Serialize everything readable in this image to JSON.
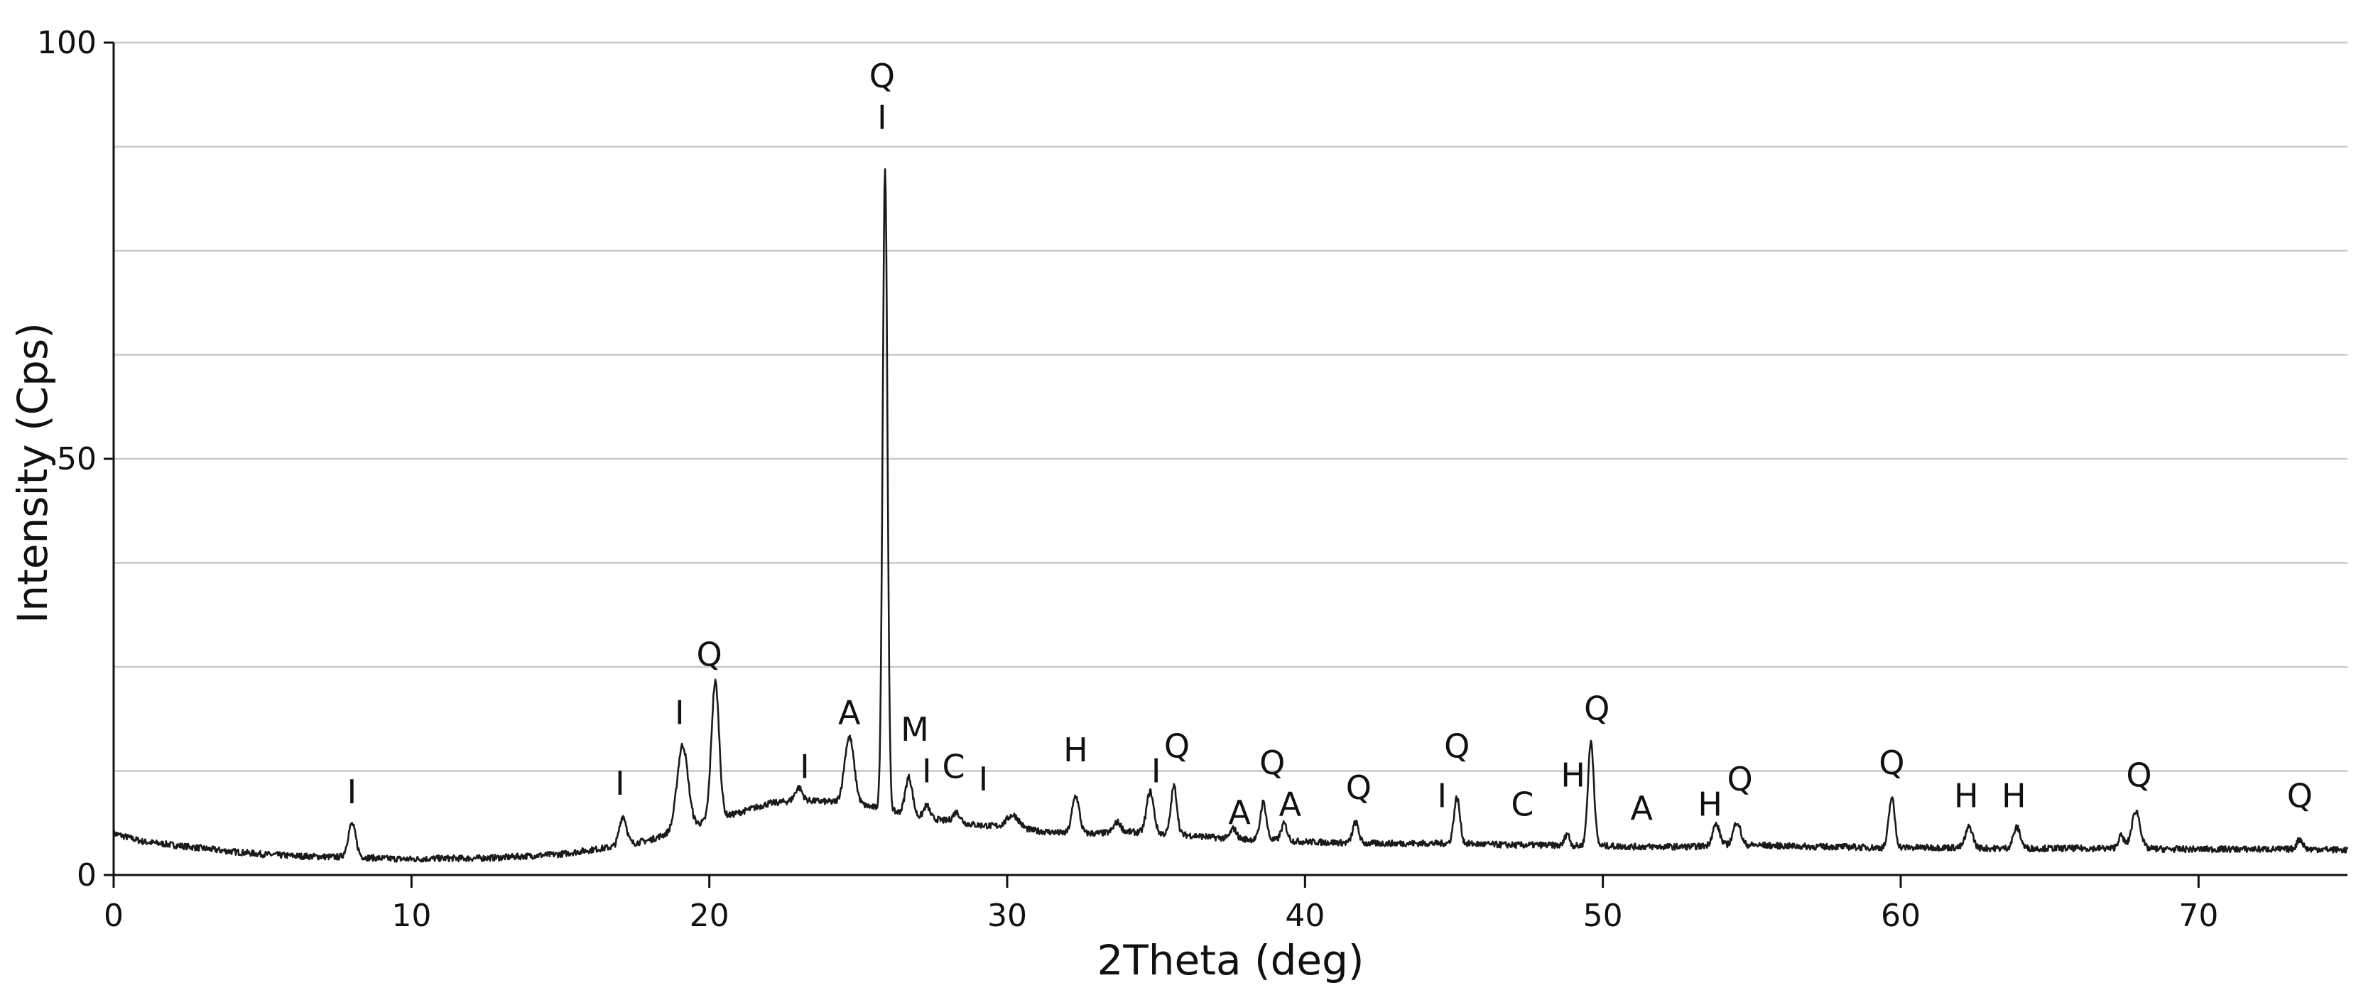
{
  "chart_data": {
    "type": "line",
    "title": "",
    "xlabel": "2Theta (deg)",
    "ylabel": "Intensity (Cps)",
    "xlim": [
      0,
      75
    ],
    "ylim": [
      0,
      100
    ],
    "grid": true,
    "x_ticks": [
      0,
      10,
      20,
      30,
      40,
      50,
      60,
      70
    ],
    "x_tick_labels": [
      "0",
      "10",
      "20",
      "30",
      "40",
      "50",
      "60",
      "70"
    ],
    "y_ticks": [
      0,
      50,
      100
    ],
    "y_tick_labels": [
      "0",
      "50",
      "100"
    ],
    "y_gridlines": [
      0,
      12.5,
      25,
      37.5,
      50,
      62.5,
      75,
      87.5,
      100
    ],
    "baseline": [
      [
        0,
        5.0
      ],
      [
        1,
        4.0
      ],
      [
        2,
        3.6
      ],
      [
        3,
        3.2
      ],
      [
        4,
        2.8
      ],
      [
        5,
        2.5
      ],
      [
        6,
        2.3
      ],
      [
        7,
        2.2
      ],
      [
        8.5,
        2.1
      ],
      [
        9,
        2.0
      ],
      [
        10,
        1.9
      ],
      [
        11,
        2.0
      ],
      [
        12,
        2.0
      ],
      [
        13,
        2.1
      ],
      [
        14,
        2.3
      ],
      [
        15,
        2.5
      ],
      [
        16,
        3.0
      ],
      [
        17,
        3.5
      ],
      [
        18,
        4.2
      ],
      [
        19,
        5.5
      ],
      [
        20,
        6.5
      ],
      [
        21,
        7.5
      ],
      [
        22,
        8.6
      ],
      [
        23,
        9.0
      ],
      [
        24,
        8.8
      ],
      [
        25,
        8.5
      ],
      [
        26,
        7.8
      ],
      [
        27,
        7.0
      ],
      [
        28,
        6.5
      ],
      [
        29,
        6.0
      ],
      [
        30,
        5.8
      ],
      [
        31,
        5.3
      ],
      [
        32,
        5.0
      ],
      [
        33,
        5.0
      ],
      [
        34,
        5.2
      ],
      [
        35,
        5.0
      ],
      [
        36,
        4.8
      ],
      [
        37,
        4.5
      ],
      [
        38,
        4.3
      ],
      [
        39,
        4.2
      ],
      [
        40,
        4.0
      ],
      [
        41,
        3.9
      ],
      [
        42,
        3.8
      ],
      [
        43,
        3.8
      ],
      [
        44,
        3.8
      ],
      [
        45,
        3.8
      ],
      [
        46,
        3.7
      ],
      [
        47,
        3.6
      ],
      [
        48,
        3.6
      ],
      [
        49,
        3.5
      ],
      [
        50,
        3.5
      ],
      [
        51,
        3.4
      ],
      [
        52,
        3.4
      ],
      [
        53,
        3.4
      ],
      [
        54,
        3.6
      ],
      [
        55,
        3.6
      ],
      [
        56,
        3.5
      ],
      [
        57,
        3.4
      ],
      [
        58,
        3.4
      ],
      [
        59,
        3.3
      ],
      [
        60,
        3.3
      ],
      [
        61,
        3.3
      ],
      [
        62,
        3.3
      ],
      [
        63,
        3.2
      ],
      [
        64,
        3.2
      ],
      [
        65,
        3.2
      ],
      [
        66,
        3.2
      ],
      [
        67,
        3.2
      ],
      [
        68,
        3.2
      ],
      [
        69,
        3.1
      ],
      [
        70,
        3.1
      ],
      [
        71,
        3.1
      ],
      [
        72,
        3.1
      ],
      [
        73,
        3.1
      ],
      [
        74,
        3.1
      ],
      [
        75,
        3.0
      ]
    ],
    "peaks": [
      {
        "x": 8.0,
        "height": 4.0,
        "width": 0.13
      },
      {
        "x": 17.1,
        "height": 3.5,
        "width": 0.12
      },
      {
        "x": 19.1,
        "height": 10.0,
        "width": 0.18
      },
      {
        "x": 20.2,
        "height": 16.5,
        "width": 0.13
      },
      {
        "x": 23.0,
        "height": 1.5,
        "width": 0.12
      },
      {
        "x": 24.7,
        "height": 8.0,
        "width": 0.16
      },
      {
        "x": 25.9,
        "height": 77.0,
        "width": 0.08
      },
      {
        "x": 26.7,
        "height": 4.5,
        "width": 0.12
      },
      {
        "x": 27.3,
        "height": 1.5,
        "width": 0.1
      },
      {
        "x": 28.3,
        "height": 1.2,
        "width": 0.12
      },
      {
        "x": 30.2,
        "height": 1.5,
        "width": 0.2
      },
      {
        "x": 32.3,
        "height": 4.5,
        "width": 0.12
      },
      {
        "x": 33.7,
        "height": 1.2,
        "width": 0.12
      },
      {
        "x": 34.8,
        "height": 5.0,
        "width": 0.12
      },
      {
        "x": 35.6,
        "height": 5.8,
        "width": 0.1
      },
      {
        "x": 37.6,
        "height": 1.2,
        "width": 0.1
      },
      {
        "x": 38.6,
        "height": 4.5,
        "width": 0.1
      },
      {
        "x": 39.3,
        "height": 2.0,
        "width": 0.1
      },
      {
        "x": 41.7,
        "height": 2.5,
        "width": 0.1
      },
      {
        "x": 45.1,
        "height": 5.5,
        "width": 0.1
      },
      {
        "x": 48.8,
        "height": 1.5,
        "width": 0.08
      },
      {
        "x": 49.6,
        "height": 12.5,
        "width": 0.1
      },
      {
        "x": 53.8,
        "height": 2.5,
        "width": 0.12
      },
      {
        "x": 54.5,
        "height": 2.8,
        "width": 0.12
      },
      {
        "x": 59.7,
        "height": 6.0,
        "width": 0.1
      },
      {
        "x": 62.3,
        "height": 2.5,
        "width": 0.12
      },
      {
        "x": 63.9,
        "height": 2.5,
        "width": 0.12
      },
      {
        "x": 67.4,
        "height": 1.5,
        "width": 0.1
      },
      {
        "x": 67.9,
        "height": 4.5,
        "width": 0.14
      },
      {
        "x": 73.4,
        "height": 1.2,
        "width": 0.1
      }
    ],
    "annotations": [
      {
        "text": "I",
        "x": 8.0,
        "y": 10
      },
      {
        "text": "I",
        "x": 17.0,
        "y": 11
      },
      {
        "text": "I",
        "x": 19.0,
        "y": 19.5
      },
      {
        "text": "Q",
        "x": 20.0,
        "y": 26.5
      },
      {
        "text": "I",
        "x": 23.2,
        "y": 13
      },
      {
        "text": "A",
        "x": 24.7,
        "y": 19.5
      },
      {
        "text": "Q",
        "x": 25.8,
        "y": 96
      },
      {
        "text": "I",
        "x": 25.8,
        "y": 91
      },
      {
        "text": "M",
        "x": 26.9,
        "y": 17.5
      },
      {
        "text": "I",
        "x": 27.3,
        "y": 12.5
      },
      {
        "text": "C",
        "x": 28.2,
        "y": 13
      },
      {
        "text": "I",
        "x": 29.2,
        "y": 11.5
      },
      {
        "text": "H",
        "x": 32.3,
        "y": 15
      },
      {
        "text": "I",
        "x": 35.0,
        "y": 12.5
      },
      {
        "text": "Q",
        "x": 35.7,
        "y": 15.5
      },
      {
        "text": "A",
        "x": 37.8,
        "y": 7.5
      },
      {
        "text": "Q",
        "x": 38.9,
        "y": 13.5
      },
      {
        "text": "A",
        "x": 39.5,
        "y": 8.5
      },
      {
        "text": "Q",
        "x": 41.8,
        "y": 10.5
      },
      {
        "text": "I",
        "x": 44.6,
        "y": 9.5
      },
      {
        "text": "Q",
        "x": 45.1,
        "y": 15.5
      },
      {
        "text": "C",
        "x": 47.3,
        "y": 8.5
      },
      {
        "text": "H",
        "x": 49.0,
        "y": 12
      },
      {
        "text": "Q",
        "x": 49.8,
        "y": 20
      },
      {
        "text": "A",
        "x": 51.3,
        "y": 8.0
      },
      {
        "text": "H",
        "x": 53.6,
        "y": 8.5
      },
      {
        "text": "Q",
        "x": 54.6,
        "y": 11.5
      },
      {
        "text": "Q",
        "x": 59.7,
        "y": 13.5
      },
      {
        "text": "H",
        "x": 62.2,
        "y": 9.5
      },
      {
        "text": "H",
        "x": 63.8,
        "y": 9.5
      },
      {
        "text": "Q",
        "x": 68.0,
        "y": 12
      },
      {
        "text": "Q",
        "x": 73.4,
        "y": 9.5
      }
    ],
    "line_color": "#1a1a1a",
    "grid_color": "#c8c8c8"
  }
}
